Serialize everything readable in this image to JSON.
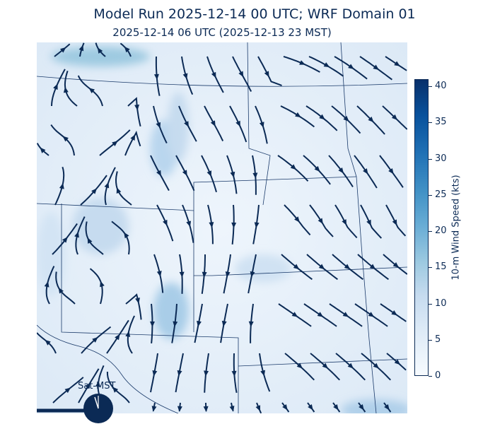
{
  "header": {
    "title": "Model Run 2025-12-14 00 UTC; WRF Domain 01",
    "subtitle": "2025-12-14 06 UTC  (2025-12-13 23 MST)"
  },
  "colorbar": {
    "label": "10-m Wind Speed (kts)",
    "min": 0,
    "max": 41,
    "ticks": [
      "0",
      "5",
      "10",
      "15",
      "20",
      "25",
      "30",
      "35",
      "40"
    ],
    "colormap": "Blues"
  },
  "map": {
    "layer": "10-m wind streamlines",
    "streamline_color": "#0b2a55",
    "boundary_color": "#1a3a6a"
  },
  "timeline": {
    "clock_label": "Sat-MST",
    "progress_fraction": 0.13,
    "clock_hour": 23,
    "color": "#0b2a55"
  }
}
